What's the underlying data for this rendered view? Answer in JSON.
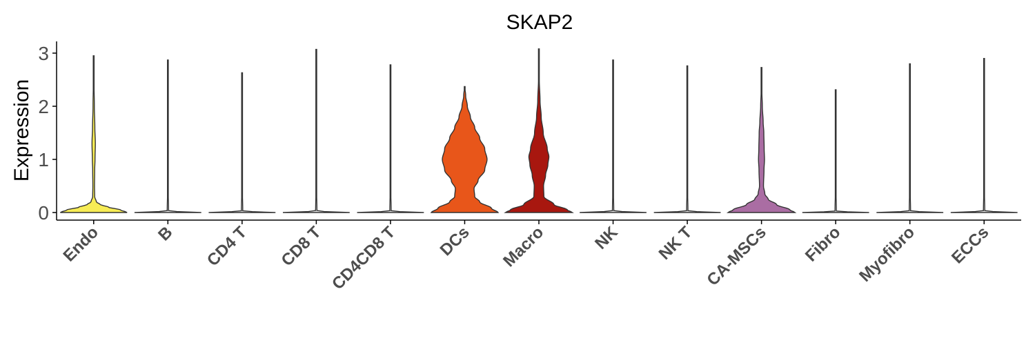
{
  "chart_data": {
    "type": "violin",
    "title": "SKAP2",
    "ylabel": "Expression",
    "xlabel": "",
    "ylim": [
      -0.15,
      3.25
    ],
    "yticks": [
      0,
      1,
      2,
      3
    ],
    "grid": false,
    "legend": "none",
    "categories": [
      "Endo",
      "B",
      "CD4 T",
      "CD8 T",
      "CD4CD8 T",
      "DCs",
      "Macro",
      "NK",
      "NK T",
      "CA-MSCs",
      "Fibro",
      "Myofibro",
      "ECCs"
    ],
    "colors": [
      "#F7EC55",
      "#E3E3E3",
      "#E3E3E3",
      "#E3E3E3",
      "#E3E3E3",
      "#E8561A",
      "#A8170F",
      "#E3E3E3",
      "#E3E3E3",
      "#AA6DA3",
      "#E3E3E3",
      "#E3E3E3",
      "#E3E3E3"
    ],
    "series": [
      {
        "category": "Endo",
        "max": 2.95,
        "profile": [
          [
            0,
            1.0
          ],
          [
            0.05,
            0.8
          ],
          [
            0.1,
            0.45
          ],
          [
            0.15,
            0.2
          ],
          [
            0.2,
            0.08
          ],
          [
            0.3,
            0.03
          ],
          [
            0.5,
            0.025
          ],
          [
            0.8,
            0.03
          ],
          [
            1.0,
            0.04
          ],
          [
            1.3,
            0.05
          ],
          [
            1.6,
            0.035
          ],
          [
            2.0,
            0.02
          ],
          [
            2.5,
            0.008
          ],
          [
            2.95,
            0.004
          ]
        ]
      },
      {
        "category": "B",
        "max": 2.87,
        "profile": [
          [
            0,
            1.0
          ],
          [
            0.01,
            0.4
          ],
          [
            0.03,
            0.02
          ],
          [
            0.5,
            0.006
          ],
          [
            1.5,
            0.006
          ],
          [
            2.87,
            0.004
          ]
        ]
      },
      {
        "category": "CD4 T",
        "max": 2.63,
        "profile": [
          [
            0,
            1.0
          ],
          [
            0.01,
            0.4
          ],
          [
            0.03,
            0.02
          ],
          [
            0.5,
            0.006
          ],
          [
            1.5,
            0.006
          ],
          [
            2.63,
            0.004
          ]
        ]
      },
      {
        "category": "CD8 T",
        "max": 3.07,
        "profile": [
          [
            0,
            1.0
          ],
          [
            0.01,
            0.4
          ],
          [
            0.03,
            0.02
          ],
          [
            0.5,
            0.006
          ],
          [
            1.5,
            0.006
          ],
          [
            3.07,
            0.004
          ]
        ]
      },
      {
        "category": "CD4CD8 T",
        "max": 2.78,
        "profile": [
          [
            0,
            1.0
          ],
          [
            0.01,
            0.4
          ],
          [
            0.03,
            0.02
          ],
          [
            0.5,
            0.006
          ],
          [
            1.5,
            0.006
          ],
          [
            2.78,
            0.004
          ]
        ]
      },
      {
        "category": "DCs",
        "max": 2.37,
        "profile": [
          [
            0,
            1.0
          ],
          [
            0.08,
            0.8
          ],
          [
            0.2,
            0.45
          ],
          [
            0.3,
            0.3
          ],
          [
            0.45,
            0.28
          ],
          [
            0.6,
            0.4
          ],
          [
            0.8,
            0.6
          ],
          [
            1.0,
            0.67
          ],
          [
            1.2,
            0.6
          ],
          [
            1.4,
            0.45
          ],
          [
            1.6,
            0.3
          ],
          [
            1.8,
            0.17
          ],
          [
            2.0,
            0.08
          ],
          [
            2.2,
            0.03
          ],
          [
            2.37,
            0.004
          ]
        ]
      },
      {
        "category": "Macro",
        "max": 3.08,
        "profile": [
          [
            0,
            1.0
          ],
          [
            0.05,
            0.85
          ],
          [
            0.15,
            0.45
          ],
          [
            0.3,
            0.15
          ],
          [
            0.5,
            0.14
          ],
          [
            0.7,
            0.2
          ],
          [
            0.9,
            0.27
          ],
          [
            1.05,
            0.3
          ],
          [
            1.2,
            0.25
          ],
          [
            1.5,
            0.13
          ],
          [
            1.8,
            0.07
          ],
          [
            2.1,
            0.035
          ],
          [
            2.5,
            0.012
          ],
          [
            3.08,
            0.004
          ]
        ]
      },
      {
        "category": "NK",
        "max": 2.87,
        "profile": [
          [
            0,
            1.0
          ],
          [
            0.01,
            0.4
          ],
          [
            0.03,
            0.02
          ],
          [
            0.5,
            0.006
          ],
          [
            1.5,
            0.006
          ],
          [
            2.87,
            0.004
          ]
        ]
      },
      {
        "category": "NK T",
        "max": 2.76,
        "profile": [
          [
            0,
            1.0
          ],
          [
            0.01,
            0.4
          ],
          [
            0.03,
            0.02
          ],
          [
            0.5,
            0.006
          ],
          [
            1.5,
            0.006
          ],
          [
            2.76,
            0.004
          ]
        ]
      },
      {
        "category": "CA-MSCs",
        "max": 2.73,
        "profile": [
          [
            0,
            1.0
          ],
          [
            0.05,
            0.85
          ],
          [
            0.15,
            0.45
          ],
          [
            0.25,
            0.2
          ],
          [
            0.35,
            0.1
          ],
          [
            0.5,
            0.06
          ],
          [
            0.8,
            0.075
          ],
          [
            1.0,
            0.09
          ],
          [
            1.2,
            0.08
          ],
          [
            1.5,
            0.07
          ],
          [
            1.7,
            0.05
          ],
          [
            2.0,
            0.025
          ],
          [
            2.3,
            0.01
          ],
          [
            2.73,
            0.004
          ]
        ]
      },
      {
        "category": "Fibro",
        "max": 2.31,
        "profile": [
          [
            0,
            1.0
          ],
          [
            0.01,
            0.4
          ],
          [
            0.03,
            0.02
          ],
          [
            0.5,
            0.006
          ],
          [
            1.5,
            0.006
          ],
          [
            2.31,
            0.004
          ]
        ]
      },
      {
        "category": "Myofibro",
        "max": 2.8,
        "profile": [
          [
            0,
            1.0
          ],
          [
            0.01,
            0.4
          ],
          [
            0.03,
            0.02
          ],
          [
            0.5,
            0.006
          ],
          [
            1.5,
            0.006
          ],
          [
            2.8,
            0.004
          ]
        ]
      },
      {
        "category": "ECCs",
        "max": 2.9,
        "profile": [
          [
            0,
            1.0
          ],
          [
            0.01,
            0.4
          ],
          [
            0.03,
            0.02
          ],
          [
            0.5,
            0.006
          ],
          [
            1.5,
            0.006
          ],
          [
            2.9,
            0.004
          ]
        ]
      }
    ]
  }
}
